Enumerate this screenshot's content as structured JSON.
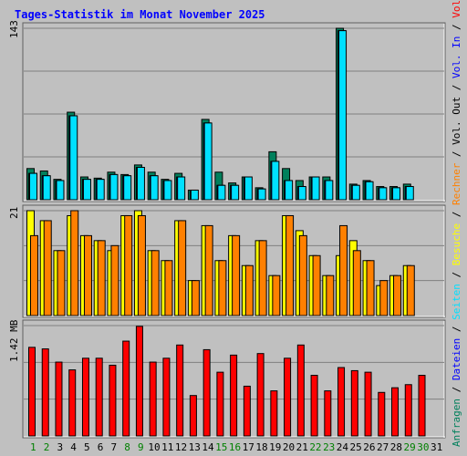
{
  "title": "Tages-Statistik im Monat November 2025",
  "colors": {
    "background": "#c0c0c0",
    "title": "#0000ff",
    "anfragen": "#00805c",
    "dateien": "#0000ff",
    "seiten": "#00e0ff",
    "besuche": "#ffff00",
    "rechner": "#ff8000",
    "kbytes": "#ff0000",
    "weekday": "#000000",
    "weekend": "#008000"
  },
  "chart_data": [
    {
      "type": "bar",
      "name": "Anfragen / Dateien / Seiten",
      "ymax_label": "143",
      "ymax": 143,
      "categories": [
        "1",
        "2",
        "3",
        "4",
        "5",
        "6",
        "7",
        "8",
        "9",
        "10",
        "11",
        "12",
        "13",
        "14",
        "15",
        "16",
        "17",
        "18",
        "19",
        "20",
        "21",
        "22",
        "23",
        "24",
        "25",
        "26",
        "27",
        "28",
        "29",
        "30",
        "31"
      ],
      "series": [
        {
          "name": "Anfragen",
          "values": [
            26,
            24,
            17,
            73,
            19,
            18,
            23,
            21,
            29,
            23,
            17,
            22,
            8,
            67,
            23,
            14,
            19,
            10,
            40,
            26,
            16,
            19,
            19,
            143,
            13,
            16,
            11,
            11,
            13,
            0,
            0
          ]
        },
        {
          "name": "Dateien",
          "values": [
            22,
            20,
            16,
            70,
            17,
            17,
            21,
            20,
            27,
            20,
            16,
            19,
            8,
            64,
            12,
            12,
            19,
            9,
            32,
            16,
            11,
            19,
            16,
            141,
            12,
            15,
            10,
            10,
            11,
            0,
            0
          ]
        },
        {
          "name": "Seiten",
          "values": [
            22,
            20,
            16,
            70,
            17,
            17,
            21,
            20,
            27,
            20,
            16,
            19,
            8,
            64,
            12,
            12,
            19,
            9,
            32,
            16,
            11,
            19,
            16,
            141,
            12,
            15,
            10,
            10,
            11,
            0,
            0
          ]
        }
      ]
    },
    {
      "type": "bar",
      "name": "Besuche / Rechner",
      "ymax_label": "21",
      "ymax": 21,
      "categories": [
        "1",
        "2",
        "3",
        "4",
        "5",
        "6",
        "7",
        "8",
        "9",
        "10",
        "11",
        "12",
        "13",
        "14",
        "15",
        "16",
        "17",
        "18",
        "19",
        "20",
        "21",
        "22",
        "23",
        "24",
        "25",
        "26",
        "27",
        "28",
        "29",
        "30",
        "31"
      ],
      "series": [
        {
          "name": "Besuche",
          "values": [
            21,
            19,
            13,
            20,
            16,
            15,
            13,
            20,
            21,
            13,
            11,
            19,
            7,
            18,
            11,
            16,
            10,
            15,
            8,
            20,
            17,
            12,
            8,
            12,
            15,
            11,
            6,
            8,
            10,
            0,
            0
          ]
        },
        {
          "name": "Rechner",
          "values": [
            16,
            19,
            13,
            21,
            16,
            15,
            14,
            20,
            20,
            13,
            11,
            19,
            7,
            18,
            11,
            16,
            10,
            15,
            8,
            20,
            16,
            12,
            8,
            18,
            13,
            11,
            7,
            8,
            10,
            0,
            0
          ]
        }
      ]
    },
    {
      "type": "bar",
      "name": "Volumen",
      "ymax_label": "1.42 MB",
      "ymax": 1.42,
      "categories": [
        "1",
        "2",
        "3",
        "4",
        "5",
        "6",
        "7",
        "8",
        "9",
        "10",
        "11",
        "12",
        "13",
        "14",
        "15",
        "16",
        "17",
        "18",
        "19",
        "20",
        "21",
        "22",
        "23",
        "24",
        "25",
        "26",
        "27",
        "28",
        "29",
        "30",
        "31"
      ],
      "series": [
        {
          "name": "Volumen",
          "values": [
            1.14,
            1.12,
            0.95,
            0.85,
            1.0,
            1.0,
            0.91,
            1.22,
            1.41,
            0.95,
            1.0,
            1.17,
            0.52,
            1.11,
            0.82,
            1.04,
            0.64,
            1.06,
            0.58,
            1.0,
            1.17,
            0.78,
            0.58,
            0.88,
            0.84,
            0.82,
            0.56,
            0.62,
            0.66,
            0.78,
            0
          ]
        }
      ]
    }
  ],
  "weekend_days": [
    1,
    2,
    8,
    9,
    15,
    16,
    22,
    23,
    29,
    30
  ],
  "right_label": [
    {
      "text": "Anfragen",
      "key": "anfragen"
    },
    {
      "text": " / ",
      "key": "weekday"
    },
    {
      "text": "Dateien",
      "key": "dateien"
    },
    {
      "text": " / ",
      "key": "weekday"
    },
    {
      "text": "Seiten",
      "key": "seiten"
    },
    {
      "text": " / ",
      "key": "weekday"
    },
    {
      "text": "Besuche",
      "key": "besuche"
    },
    {
      "text": " / ",
      "key": "weekday"
    },
    {
      "text": "Rechner",
      "key": "rechner"
    },
    {
      "text": " / ",
      "key": "weekday"
    },
    {
      "text": "Vol. Out",
      "key": "weekday"
    },
    {
      "text": " / ",
      "key": "weekday"
    },
    {
      "text": "Vol. In",
      "key": "dateien"
    },
    {
      "text": " / ",
      "key": "weekday"
    },
    {
      "text": "Volumen",
      "key": "kbytes"
    }
  ]
}
